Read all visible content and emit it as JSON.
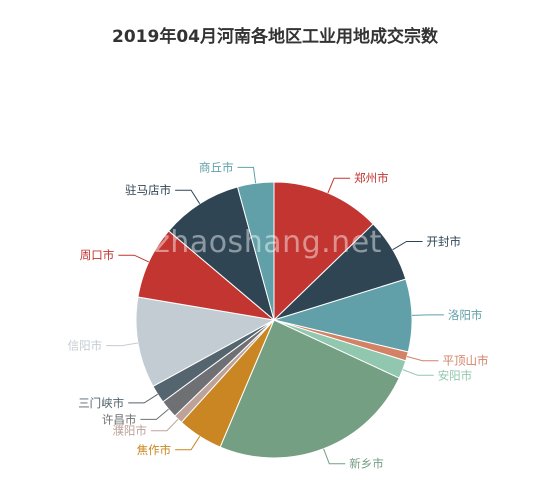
{
  "chart_data": {
    "type": "pie",
    "title": "2019年04月河南各地区工业用地成交宗数",
    "watermark": "zhaoshang.net",
    "slices": [
      {
        "label": "郑州市",
        "value": 12,
        "color": "#c23531"
      },
      {
        "label": "开封市",
        "value": 7,
        "color": "#2f4554"
      },
      {
        "label": "洛阳市",
        "value": 8,
        "color": "#61a0a8"
      },
      {
        "label": "平顶山市",
        "value": 1,
        "color": "#d48265"
      },
      {
        "label": "安阳市",
        "value": 2,
        "color": "#91c7ae"
      },
      {
        "label": "新乡市",
        "value": 23,
        "color": "#749f83"
      },
      {
        "label": "焦作市",
        "value": 5,
        "color": "#ca8622"
      },
      {
        "label": "濮阳市",
        "value": 1,
        "color": "#bda29a"
      },
      {
        "label": "许昌市",
        "value": 2,
        "color": "#6e7074"
      },
      {
        "label": "三门峡市",
        "value": 2,
        "color": "#546570"
      },
      {
        "label": "信阳市",
        "value": 10,
        "color": "#c4ccd3"
      },
      {
        "label": "周口市",
        "value": 8,
        "color": "#c23531"
      },
      {
        "label": "驻马店市",
        "value": 9,
        "color": "#2f4554"
      },
      {
        "label": "商丘市",
        "value": 4,
        "color": "#61a0a8"
      }
    ]
  }
}
